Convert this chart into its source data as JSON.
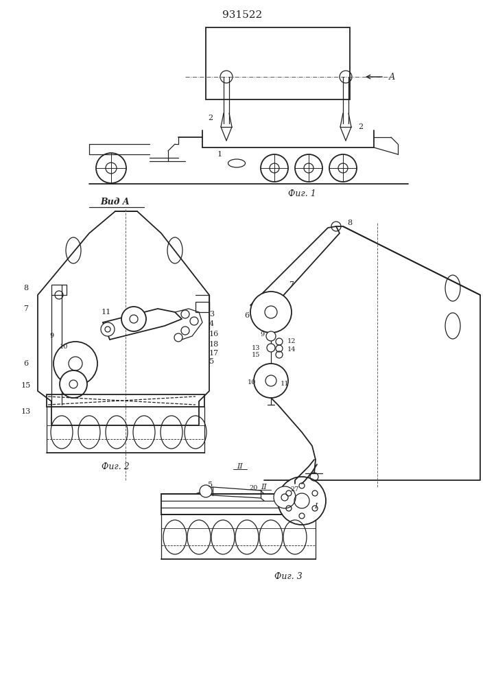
{
  "title": "931522",
  "fig1_label": "Фиг. 1",
  "fig2_label": "Фиг. 2",
  "fig3_label": "Фиг. 3",
  "vida_label": "Вид A",
  "background_color": "#ffffff",
  "line_color": "#222222",
  "text_color": "#222222"
}
